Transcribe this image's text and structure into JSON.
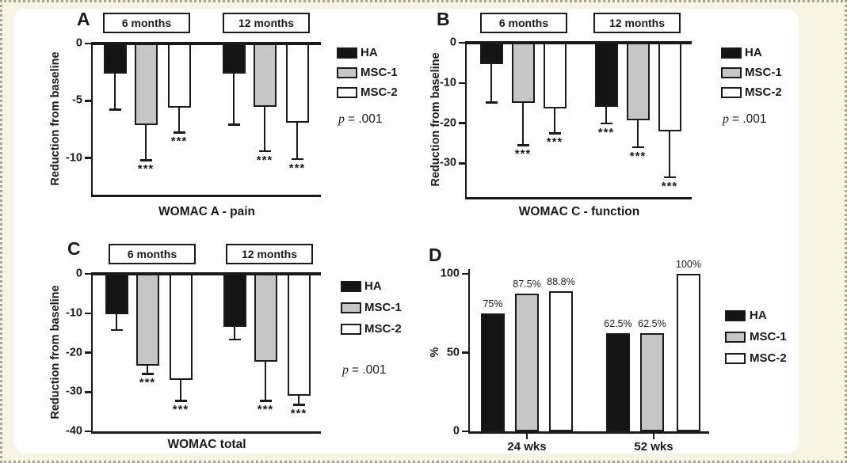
{
  "colors": {
    "ink": "#1a1a1a",
    "page_background": "#f8f4e3",
    "card_background": "#ffffff",
    "dotted_border": "#a8a292"
  },
  "p_var": "p",
  "p_value": "= .001",
  "legend": {
    "items": [
      {
        "label": "HA",
        "color": "#141414"
      },
      {
        "label": "MSC-1",
        "color": "#c6c6c6"
      },
      {
        "label": "MSC-2",
        "color": "#ffffff"
      }
    ]
  },
  "chart_data": [
    {
      "id": "A",
      "letter": "A",
      "type": "bar",
      "orientation": "down",
      "xlabel": "WOMAC A - pain",
      "ylabel": "Reduction from baseline",
      "groups": [
        "6 months",
        "12 months"
      ],
      "series": [
        "HA",
        "MSC-1",
        "MSC-2"
      ],
      "values": [
        [
          -2.6,
          -7.1,
          -5.6
        ],
        [
          -2.6,
          -5.5,
          -6.9
        ]
      ],
      "errors_sd": [
        [
          3.1,
          3.0,
          2.1
        ],
        [
          4.4,
          3.8,
          3.1
        ]
      ],
      "sig": [
        [
          "",
          "***",
          "***"
        ],
        [
          "",
          "***",
          "***"
        ]
      ],
      "yticks": [
        0,
        -5,
        -10
      ],
      "ylim": [
        0,
        -13.2
      ],
      "grid": false,
      "p_text": "p = .001"
    },
    {
      "id": "B",
      "letter": "B",
      "type": "bar",
      "orientation": "down",
      "xlabel": "WOMAC C - function",
      "ylabel": "Reduction from baseline",
      "groups": [
        "6 months",
        "12 months"
      ],
      "series": [
        "HA",
        "MSC-1",
        "MSC-2"
      ],
      "values": [
        [
          -5.3,
          -15.0,
          -16.3
        ],
        [
          -16.0,
          -19.3,
          -22.0
        ]
      ],
      "errors_sd": [
        [
          9.3,
          10.3,
          6.0
        ],
        [
          3.8,
          6.5,
          11.3
        ]
      ],
      "sig": [
        [
          "",
          "***",
          "***"
        ],
        [
          "***",
          "***",
          "***"
        ]
      ],
      "yticks": [
        0,
        -10,
        -20,
        -30
      ],
      "ylim": [
        0,
        -38.4
      ],
      "grid": false,
      "p_text": "p = .001"
    },
    {
      "id": "C",
      "letter": "C",
      "type": "bar",
      "orientation": "down",
      "xlabel": "WOMAC total",
      "ylabel": "Reduction from baseline",
      "groups": [
        "6 months",
        "12 months"
      ],
      "series": [
        "HA",
        "MSC-1",
        "MSC-2"
      ],
      "values": [
        [
          -10.2,
          -23.4,
          -27.0
        ],
        [
          -13.5,
          -22.3,
          -31.0
        ]
      ],
      "errors_sd": [
        [
          3.8,
          1.8,
          5.0
        ],
        [
          3.0,
          9.7,
          2.0
        ]
      ],
      "sig": [
        [
          "",
          "***",
          "***"
        ],
        [
          "",
          "***",
          "***"
        ]
      ],
      "yticks": [
        0,
        -10,
        -20,
        -30,
        -40
      ],
      "ylim": [
        0,
        -40
      ],
      "grid": false,
      "p_text": "p = .001"
    },
    {
      "id": "D",
      "letter": "D",
      "type": "bar",
      "orientation": "up",
      "xlabel": "",
      "ylabel": "%",
      "groups": [
        "24 wks",
        "52 wks"
      ],
      "series": [
        "HA",
        "MSC-1",
        "MSC-2"
      ],
      "values": [
        [
          75,
          87.5,
          88.8
        ],
        [
          62.5,
          62.5,
          100
        ]
      ],
      "value_labels": [
        [
          "75%",
          "87.5%",
          "88.8%"
        ],
        [
          "62.5%",
          "62.5%",
          "100%"
        ]
      ],
      "yticks": [
        0,
        50,
        100
      ],
      "ylim": [
        0,
        100
      ],
      "grid": false
    }
  ]
}
